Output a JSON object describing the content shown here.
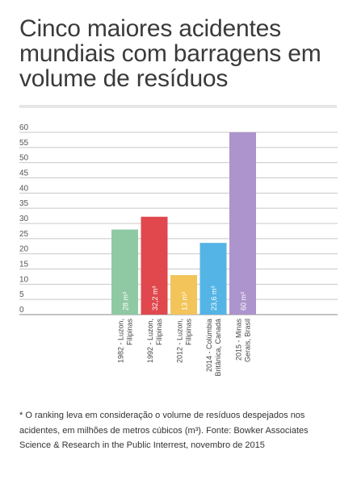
{
  "title": "Cinco maiores acidentes mundiais com barragens em volume de resíduos",
  "footnote": "* O ranking leva em consideração o volume de resíduos despejados nos acidentes, em milhões de metros cúbicos (m³). Fonte: Bowker Associates Science & Research in the Public Interrest, novembro de 2015",
  "chart_data": {
    "type": "bar",
    "title": "Cinco maiores acidentes mundiais com barragens em volume de resíduos",
    "xlabel": "",
    "ylabel": "",
    "ylim": [
      0,
      60
    ],
    "yticks": [
      0,
      5,
      10,
      15,
      20,
      25,
      30,
      35,
      40,
      45,
      50,
      55,
      60
    ],
    "grid": true,
    "categories": [
      [
        "1982 - Luzon,",
        "Filipinas"
      ],
      [
        "1992 - Luzon,",
        "Filipinas"
      ],
      [
        "2012 - Luzon,",
        "Filipinas"
      ],
      [
        "2014 - Colúmbia",
        "Britânica, Canadá"
      ],
      [
        "2015 - Minas",
        "Gerais, Brasil"
      ]
    ],
    "values": [
      28,
      32.2,
      13,
      23.6,
      60
    ],
    "value_labels": [
      "28 m³",
      "32,2 m³",
      "13 m³",
      "23,6 m³",
      "60 m³"
    ],
    "colors": [
      "#8fc9a3",
      "#e0484d",
      "#f2c45a",
      "#54b4e6",
      "#ad94cc"
    ]
  }
}
